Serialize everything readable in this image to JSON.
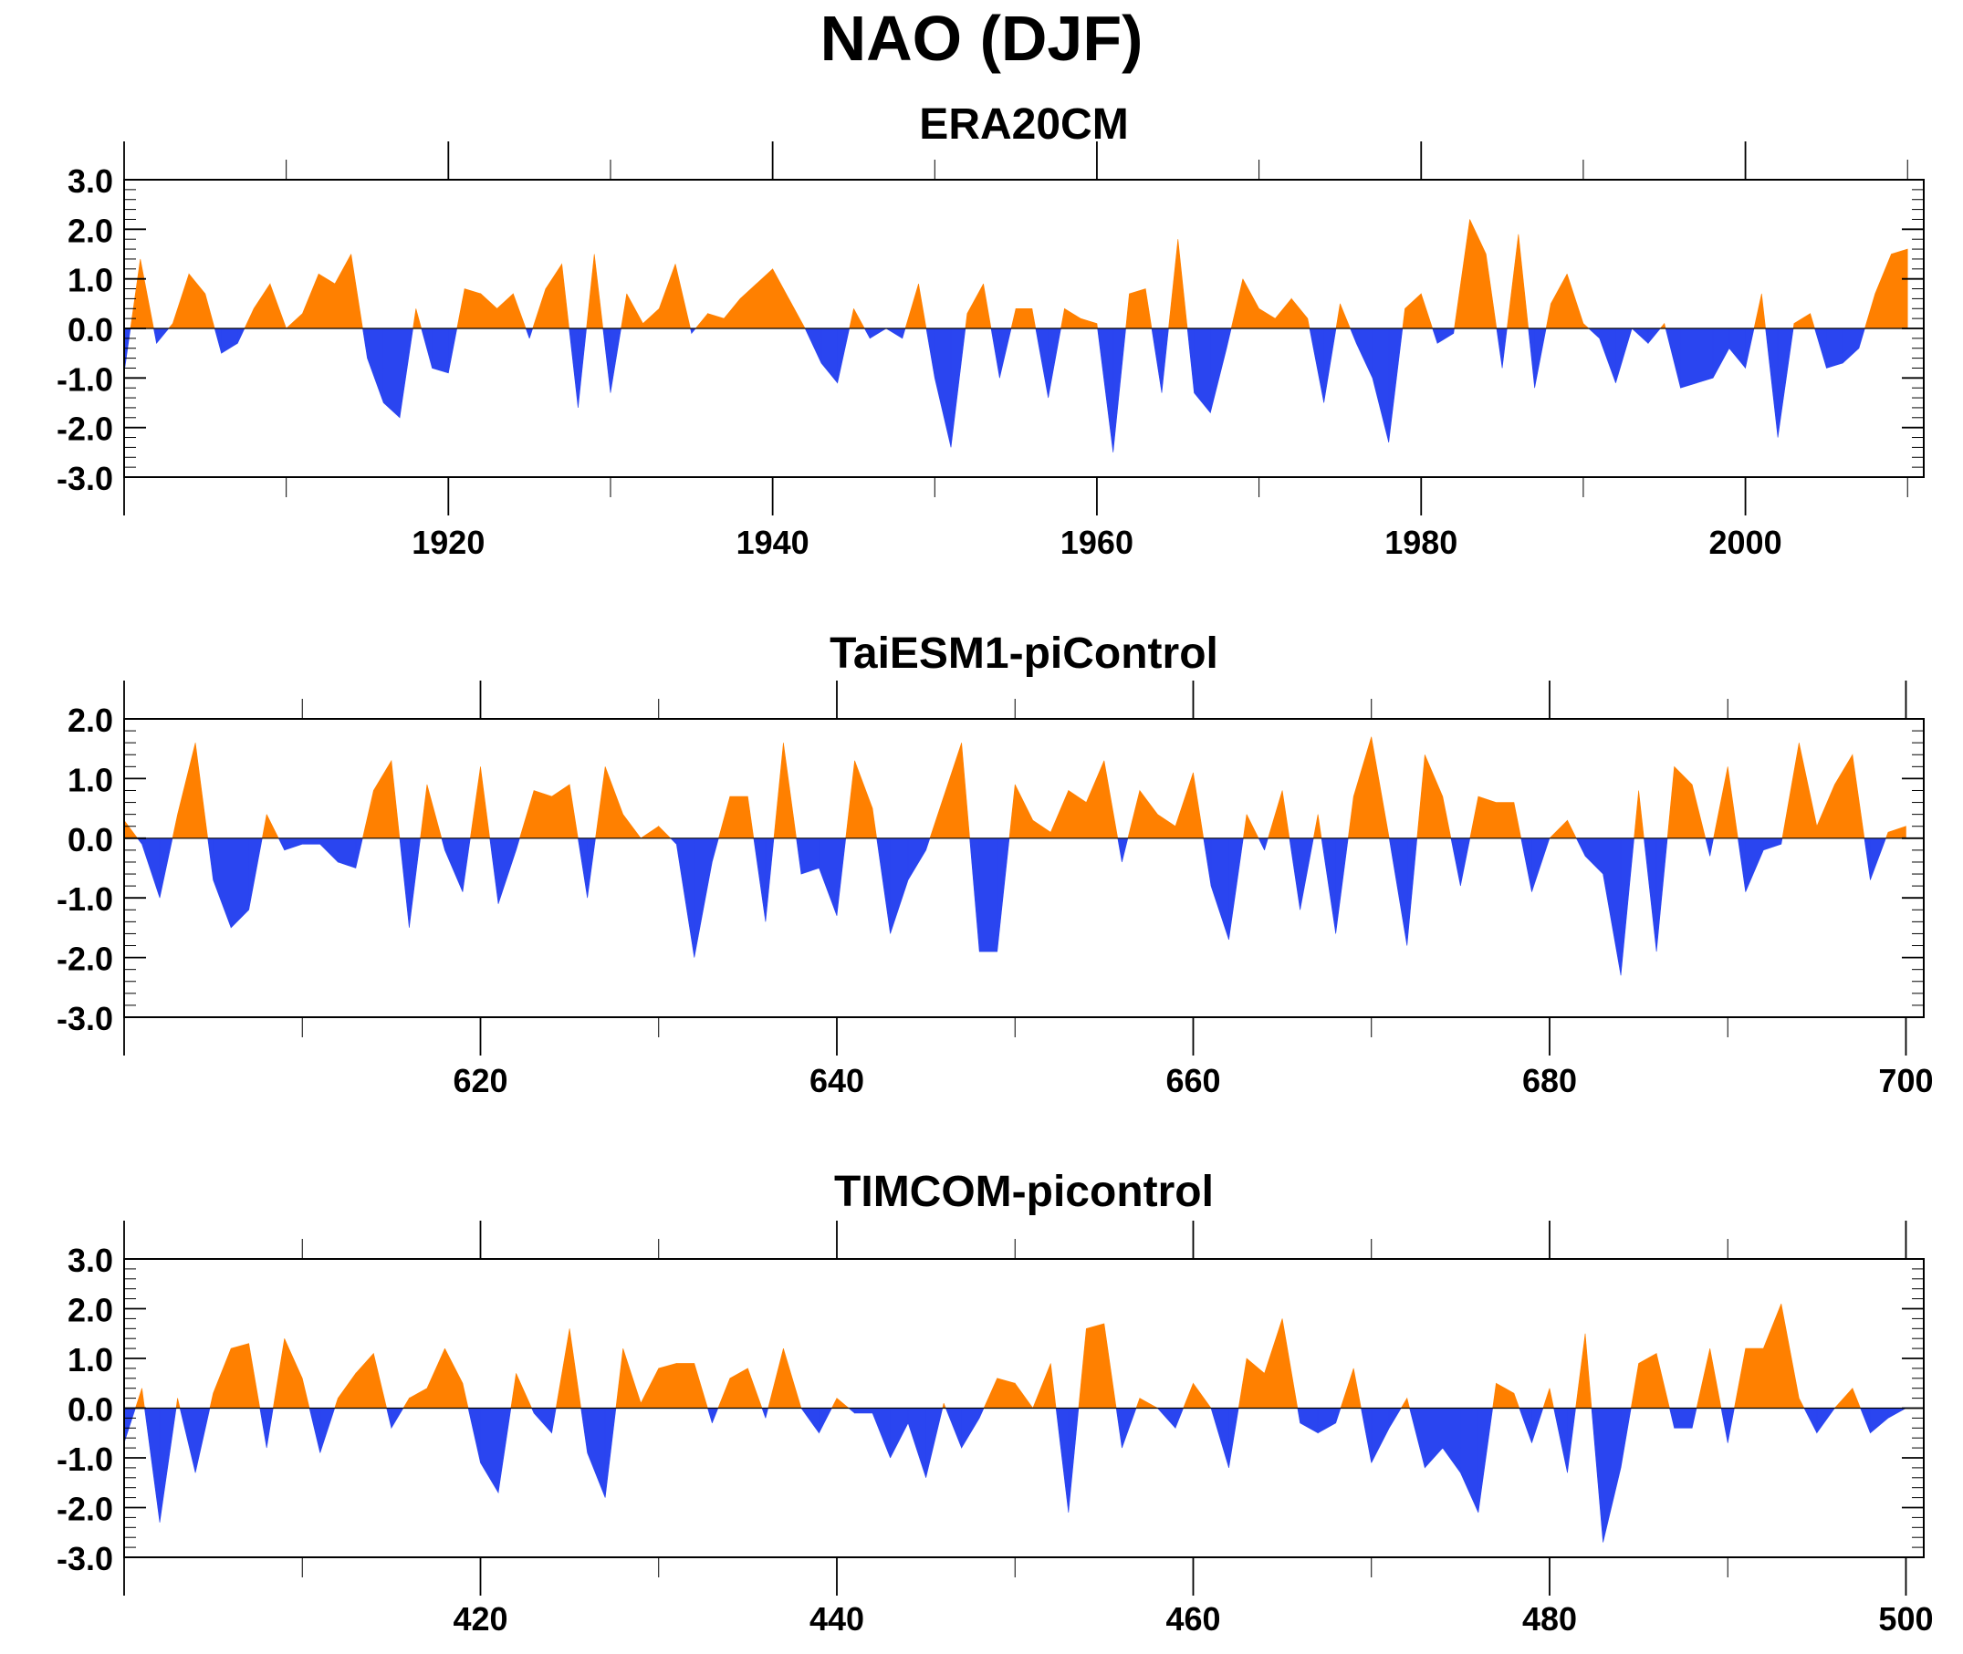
{
  "title": "NAO (DJF)",
  "colors": {
    "positive": "#ff8000",
    "negative": "#2a45f0",
    "axis": "#000000"
  },
  "chart_data": [
    {
      "type": "area",
      "title": "ERA20CM",
      "xlim": [
        1900,
        2011
      ],
      "ylim": [
        -3,
        3
      ],
      "yticks": [
        3.0,
        2.0,
        1.0,
        0.0,
        -1.0,
        -2.0,
        -3.0
      ],
      "ytick_labels": [
        "3.0",
        "2.0",
        "1.0",
        "0.0",
        "-1.0",
        "-2.0",
        "-3.0"
      ],
      "xticks": [
        1920,
        1940,
        1960,
        1980,
        2000
      ],
      "xtick_labels": [
        "1920",
        "1940",
        "1960",
        "1980",
        "2000"
      ],
      "grid": false,
      "series": [
        {
          "x0": 1900,
          "values": [
            -0.9,
            1.4,
            -0.3,
            0.1,
            1.1,
            0.7,
            -0.5,
            -0.3,
            0.4,
            0.9,
            0.0,
            0.3,
            1.1,
            0.9,
            1.5,
            -0.6,
            -1.5,
            -1.8,
            0.4,
            -0.8,
            -0.9,
            0.8,
            0.7,
            0.4,
            0.7,
            -0.2,
            0.8,
            1.3,
            -1.6,
            1.5,
            -1.3,
            0.7,
            0.1,
            0.4,
            1.3,
            -0.1,
            0.3,
            0.2,
            0.6,
            0.9,
            1.2,
            0.6,
            0.0,
            -0.7,
            -1.1,
            0.4,
            -0.2,
            0.0,
            -0.2,
            0.9,
            -1.0,
            -2.4,
            0.3,
            0.9,
            -1.0,
            0.4,
            0.4,
            -1.4,
            0.4,
            0.2,
            0.1,
            -2.5,
            0.7,
            0.8,
            -1.3,
            1.8,
            -1.3,
            -1.7,
            -0.4,
            1.0,
            0.4,
            0.2,
            0.6,
            0.2,
            -1.5,
            0.5,
            -0.3,
            -1.0,
            -2.3,
            0.4,
            0.7,
            -0.3,
            -0.1,
            2.2,
            1.5,
            -0.8,
            1.9,
            -1.2,
            0.5,
            1.1,
            0.1,
            -0.2,
            -1.1,
            0.0,
            -0.3,
            0.1,
            -1.2,
            -1.1,
            -1.0,
            -0.4,
            -0.8,
            0.7,
            -2.2,
            0.1,
            0.3,
            -0.8,
            -0.7,
            -0.4,
            0.7,
            1.5,
            1.6
          ]
        }
      ]
    },
    {
      "type": "area",
      "title": "TaiESM1-piControl",
      "xlim": [
        600,
        701
      ],
      "ylim": [
        -3,
        2
      ],
      "yticks": [
        2.0,
        1.0,
        0.0,
        -1.0,
        -2.0,
        -3.0
      ],
      "ytick_labels": [
        "2.0",
        "1.0",
        "0.0",
        "-1.0",
        "-2.0",
        "-3.0"
      ],
      "xticks": [
        620,
        640,
        660,
        680,
        700
      ],
      "xtick_labels": [
        "620",
        "640",
        "660",
        "680",
        "700"
      ],
      "grid": false,
      "series": [
        {
          "x0": 600,
          "values": [
            0.3,
            -0.1,
            -1.0,
            0.4,
            1.6,
            -0.7,
            -1.5,
            -1.2,
            0.4,
            -0.2,
            -0.1,
            -0.1,
            -0.4,
            -0.5,
            0.8,
            1.3,
            -1.5,
            0.9,
            -0.2,
            -0.9,
            1.2,
            -1.1,
            -0.2,
            0.8,
            0.7,
            0.9,
            -1.0,
            1.2,
            0.4,
            0.0,
            0.2,
            -0.1,
            -2.0,
            -0.4,
            0.7,
            0.7,
            -1.4,
            1.6,
            -0.6,
            -0.5,
            -1.3,
            1.3,
            0.5,
            -1.6,
            -0.7,
            -0.2,
            0.7,
            1.6,
            -1.9,
            -1.9,
            0.9,
            0.3,
            0.1,
            0.8,
            0.6,
            1.3,
            -0.4,
            0.8,
            0.4,
            0.2,
            1.1,
            -0.8,
            -1.7,
            0.4,
            -0.2,
            0.8,
            -1.2,
            0.4,
            -1.6,
            0.7,
            1.7,
            0.0,
            -1.8,
            1.4,
            0.7,
            -0.8,
            0.7,
            0.6,
            0.6,
            -0.9,
            0.0,
            0.3,
            -0.3,
            -0.6,
            -2.3,
            0.8,
            -1.9,
            1.2,
            0.9,
            -0.3,
            1.2,
            -0.9,
            -0.2,
            -0.1,
            1.6,
            0.2,
            0.9,
            1.4,
            -0.7,
            0.1,
            0.2
          ]
        }
      ]
    },
    {
      "type": "area",
      "title": "TIMCOM-picontrol",
      "xlim": [
        400,
        501
      ],
      "ylim": [
        -3,
        3
      ],
      "yticks": [
        3.0,
        2.0,
        1.0,
        0.0,
        -1.0,
        -2.0,
        -3.0
      ],
      "ytick_labels": [
        "3.0",
        "2.0",
        "1.0",
        "0.0",
        "-1.0",
        "-2.0",
        "-3.0"
      ],
      "xticks": [
        420,
        440,
        460,
        480,
        500
      ],
      "xtick_labels": [
        "420",
        "440",
        "460",
        "480",
        "500"
      ],
      "grid": false,
      "series": [
        {
          "x0": 400,
          "values": [
            -0.7,
            0.4,
            -2.3,
            0.2,
            -1.3,
            0.3,
            1.2,
            1.3,
            -0.8,
            1.4,
            0.6,
            -0.9,
            0.2,
            0.7,
            1.1,
            -0.4,
            0.2,
            0.4,
            1.2,
            0.5,
            -1.1,
            -1.7,
            0.7,
            -0.1,
            -0.5,
            1.6,
            -0.9,
            -1.8,
            1.2,
            0.1,
            0.8,
            0.9,
            0.9,
            -0.3,
            0.6,
            0.8,
            -0.2,
            1.2,
            0.0,
            -0.5,
            0.2,
            -0.1,
            -0.1,
            -1.0,
            -0.3,
            -1.4,
            0.1,
            -0.8,
            -0.2,
            0.6,
            0.5,
            0.0,
            0.9,
            -2.1,
            1.6,
            1.7,
            -0.8,
            0.2,
            0.0,
            -0.4,
            0.5,
            0.0,
            -1.2,
            1.0,
            0.7,
            1.8,
            -0.3,
            -0.5,
            -0.3,
            0.8,
            -1.1,
            -0.4,
            0.2,
            -1.2,
            -0.8,
            -1.3,
            -2.1,
            0.5,
            0.3,
            -0.7,
            0.4,
            -1.3,
            1.5,
            -2.7,
            -1.2,
            0.9,
            1.1,
            -0.4,
            -0.4,
            1.2,
            -0.7,
            1.2,
            1.2,
            2.1,
            0.2,
            -0.5,
            0.0,
            0.4,
            -0.5,
            -0.2,
            0.0
          ]
        }
      ]
    }
  ]
}
